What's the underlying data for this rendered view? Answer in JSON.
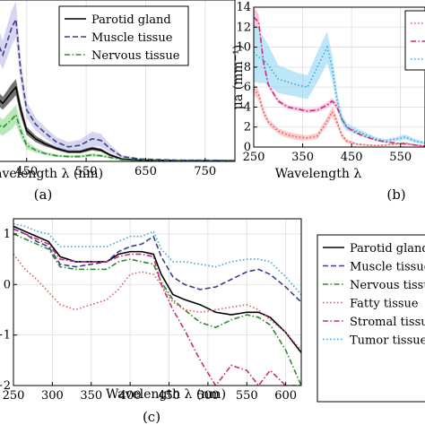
{
  "chart_data": [
    {
      "panel": "a",
      "caption": "(a)",
      "type": "line",
      "xlabel": "Wavelength λ (nm)",
      "xlim": [
        360,
        800
      ],
      "ylim": [
        0,
        10
      ],
      "x_ticks": [
        "450",
        "550",
        "650",
        "750"
      ],
      "x_tick_values": [
        450,
        550,
        650,
        750
      ],
      "legend_position": "top-right",
      "series": [
        {
          "name": "Parotid gland",
          "color": "#000000",
          "dash": "solid",
          "x": [
            360,
            390,
            410,
            425,
            432,
            440,
            450,
            465,
            480,
            500,
            520,
            540,
            560,
            575,
            590,
            610,
            640,
            700,
            800
          ],
          "y": [
            5.2,
            4.3,
            3.6,
            4.3,
            4.6,
            3.2,
            1.9,
            1.4,
            1.1,
            0.8,
            0.6,
            0.6,
            0.8,
            0.7,
            0.4,
            0.15,
            0.08,
            0.05,
            0.04
          ],
          "band": [
            0.6,
            0.5,
            0.4,
            0.5,
            0.5,
            0.4,
            0.25,
            0.2,
            0.15,
            0.1,
            0.1,
            0.1,
            0.12,
            0.1,
            0.08,
            0.04,
            0.02,
            0.01,
            0.01
          ]
        },
        {
          "name": "Muscle tissue",
          "color": "#3a3f8f",
          "dash": "dashed",
          "band_color": "#b8b2e0",
          "x": [
            360,
            390,
            410,
            425,
            432,
            440,
            450,
            465,
            480,
            500,
            520,
            540,
            560,
            575,
            590,
            610,
            640,
            700,
            800
          ],
          "y": [
            9.6,
            8.3,
            6.6,
            8.3,
            8.8,
            5.6,
            3.2,
            2.3,
            1.8,
            1.2,
            0.9,
            1.0,
            1.4,
            1.3,
            0.8,
            0.3,
            0.15,
            0.08,
            0.06
          ],
          "band": [
            1.3,
            1.1,
            0.9,
            1.1,
            1.1,
            0.8,
            0.5,
            0.4,
            0.35,
            0.3,
            0.3,
            0.35,
            0.45,
            0.4,
            0.25,
            0.1,
            0.05,
            0.02,
            0.02
          ]
        },
        {
          "name": "Nervous tissue",
          "color": "#2e8b2e",
          "dash": "dashdot",
          "band_color": "#7ed67e",
          "x": [
            360,
            390,
            410,
            425,
            432,
            440,
            450,
            465,
            480,
            500,
            520,
            540,
            560,
            575,
            590,
            610,
            640,
            700,
            800
          ],
          "y": [
            3.0,
            2.6,
            2.1,
            2.6,
            2.9,
            1.9,
            1.0,
            0.7,
            0.5,
            0.35,
            0.3,
            0.3,
            0.4,
            0.35,
            0.25,
            0.1,
            0.05,
            0.03,
            0.03
          ],
          "band": [
            0.7,
            0.6,
            0.5,
            0.6,
            0.6,
            0.4,
            0.25,
            0.15,
            0.1,
            0.08,
            0.08,
            0.08,
            0.1,
            0.08,
            0.06,
            0.03,
            0.02,
            0.01,
            0.01
          ]
        }
      ]
    },
    {
      "panel": "b",
      "caption": "(b)",
      "type": "line",
      "xlabel": "Wavelength λ",
      "ylabel": "μa (mm⁻¹)",
      "xlim": [
        250,
        600
      ],
      "ylim": [
        0,
        14
      ],
      "x_ticks": [
        "250",
        "350",
        "450",
        "550"
      ],
      "x_tick_values": [
        250,
        350,
        450,
        550
      ],
      "y_ticks": [
        "0",
        "2",
        "4",
        "6",
        "8",
        "10",
        "12",
        "14"
      ],
      "y_tick_values": [
        0,
        2,
        4,
        6,
        8,
        10,
        12,
        14
      ],
      "legend_position": "top-right",
      "series": [
        {
          "name": "",
          "color": "#e05a5a",
          "dash": "dotted",
          "band_color": "#f5a3a3",
          "x": [
            250,
            260,
            270,
            280,
            300,
            320,
            340,
            360,
            380,
            400,
            410,
            415,
            420,
            430,
            440,
            460,
            480,
            500,
            520,
            540,
            560,
            580,
            600
          ],
          "y": [
            5.8,
            5.2,
            3.5,
            2.5,
            1.6,
            1.2,
            1.0,
            0.9,
            1.1,
            2.6,
            3.5,
            3.2,
            2.5,
            1.2,
            0.6,
            0.3,
            0.2,
            0.15,
            0.2,
            0.3,
            0.4,
            0.2,
            0.1
          ],
          "band": [
            0.6,
            0.5,
            0.4,
            0.3,
            0.3,
            0.3,
            0.3,
            0.25,
            0.3,
            0.4,
            0.5,
            0.5,
            0.4,
            0.3,
            0.2,
            0.1,
            0.08,
            0.06,
            0.08,
            0.1,
            0.1,
            0.05,
            0.03
          ]
        },
        {
          "name": "",
          "color": "#cc2a7a",
          "dash": "dashdot",
          "band_color": "#f29ac6",
          "x": [
            250,
            260,
            270,
            280,
            300,
            320,
            340,
            360,
            380,
            400,
            410,
            415,
            420,
            430,
            440,
            460,
            480,
            500,
            520,
            540,
            560,
            580,
            600
          ],
          "y": [
            13.0,
            12.5,
            8.5,
            6.2,
            4.6,
            4.0,
            3.8,
            3.6,
            3.7,
            4.2,
            4.6,
            4.4,
            4.0,
            2.8,
            2.0,
            1.4,
            1.0,
            0.7,
            0.5,
            0.4,
            0.3,
            0.2,
            0.1
          ],
          "band": [
            1.0,
            0.8,
            0.5,
            0.3,
            0.2,
            0.2,
            0.2,
            0.2,
            0.2,
            0.3,
            0.3,
            0.3,
            0.3,
            0.2,
            0.15,
            0.1,
            0.08,
            0.06,
            0.05,
            0.04,
            0.03,
            0.02,
            0.02
          ]
        },
        {
          "name": "",
          "color": "#38a6d8",
          "dash": "dotted",
          "band_color": "#86d3f2",
          "x": [
            250,
            260,
            270,
            280,
            300,
            320,
            340,
            360,
            380,
            400,
            410,
            415,
            420,
            430,
            440,
            460,
            480,
            500,
            520,
            540,
            560,
            580,
            600
          ],
          "y": [
            9.5,
            9.0,
            8.7,
            8.2,
            6.8,
            6.5,
            6.2,
            6.0,
            8.0,
            10.0,
            8.0,
            6.5,
            4.8,
            2.8,
            2.0,
            1.6,
            1.2,
            0.8,
            0.6,
            0.8,
            1.0,
            0.6,
            0.4
          ],
          "band": [
            3.0,
            2.6,
            2.3,
            2.0,
            1.4,
            1.3,
            1.2,
            1.2,
            1.5,
            1.6,
            1.3,
            1.0,
            0.8,
            0.5,
            0.4,
            0.3,
            0.25,
            0.2,
            0.2,
            0.2,
            0.25,
            0.2,
            0.15
          ]
        }
      ]
    },
    {
      "panel": "c",
      "caption": "(c)",
      "type": "line",
      "xlabel": "Wavelength λ (nm)",
      "xlim": [
        250,
        620
      ],
      "ylim": [
        -2,
        1.3
      ],
      "log_y": true,
      "x_ticks": [
        "250",
        "300",
        "350",
        "400",
        "450",
        "500",
        "550",
        "600"
      ],
      "x_tick_values": [
        250,
        300,
        350,
        400,
        450,
        500,
        550,
        600
      ],
      "y_ticks": [
        "1",
        "0",
        "−1",
        "−2"
      ],
      "y_tick_values": [
        1,
        0,
        -1,
        -2
      ],
      "legend_position": "right",
      "series": [
        {
          "name": "Parotid gland",
          "color": "#000000",
          "dash": "solid",
          "x": [
            250,
            265,
            280,
            295,
            310,
            330,
            350,
            370,
            385,
            400,
            415,
            430,
            440,
            455,
            470,
            490,
            510,
            530,
            550,
            565,
            580,
            600,
            620
          ],
          "y": [
            1.15,
            1.05,
            0.95,
            0.85,
            0.55,
            0.45,
            0.45,
            0.45,
            0.6,
            0.65,
            0.65,
            0.6,
            0.2,
            -0.2,
            -0.3,
            -0.4,
            -0.55,
            -0.6,
            -0.55,
            -0.55,
            -0.65,
            -0.95,
            -1.35
          ]
        },
        {
          "name": "Muscle tissue",
          "color": "#3a3f8f",
          "dash": "dashed",
          "x": [
            250,
            265,
            280,
            295,
            310,
            330,
            350,
            370,
            385,
            400,
            415,
            430,
            440,
            455,
            470,
            490,
            510,
            530,
            550,
            565,
            580,
            600,
            620
          ],
          "y": [
            1.1,
            1.0,
            0.85,
            0.75,
            0.4,
            0.35,
            0.4,
            0.45,
            0.65,
            0.75,
            0.8,
            0.95,
            0.55,
            0.15,
            0.0,
            -0.1,
            -0.05,
            0.1,
            0.25,
            0.3,
            0.2,
            -0.05,
            -0.35
          ]
        },
        {
          "name": "Nervous tissue",
          "color": "#2e8b2e",
          "dash": "dashdot",
          "x": [
            250,
            265,
            280,
            295,
            310,
            330,
            350,
            370,
            385,
            400,
            415,
            430,
            440,
            455,
            470,
            490,
            510,
            530,
            550,
            565,
            580,
            600,
            620
          ],
          "y": [
            1.0,
            0.9,
            0.8,
            0.7,
            0.35,
            0.3,
            0.3,
            0.3,
            0.45,
            0.5,
            0.45,
            0.4,
            0.05,
            -0.3,
            -0.5,
            -0.75,
            -0.85,
            -0.7,
            -0.6,
            -0.65,
            -0.8,
            -1.3,
            -2.0
          ]
        },
        {
          "name": "Fatty tissue",
          "color": "#e05a5a",
          "dash": "dotted",
          "x": [
            250,
            265,
            280,
            295,
            310,
            330,
            350,
            370,
            385,
            400,
            415,
            430,
            440,
            455,
            470,
            490,
            510,
            530,
            550,
            565,
            580,
            600,
            620
          ],
          "y": [
            0.6,
            0.3,
            0.1,
            -0.15,
            -0.4,
            -0.5,
            -0.4,
            -0.3,
            -0.1,
            0.2,
            0.25,
            0.2,
            0.0,
            -0.35,
            -0.5,
            -0.55,
            -0.5,
            -0.45,
            -0.4,
            -0.5,
            -0.7,
            -0.95,
            -1.3
          ]
        },
        {
          "name": "Stromal tissue",
          "color": "#cc2a7a",
          "dash": "dashdot",
          "x": [
            250,
            265,
            280,
            295,
            310,
            330,
            350,
            370,
            385,
            400,
            415,
            430,
            440,
            455,
            470,
            490,
            510,
            530,
            550,
            565,
            580,
            600,
            620
          ],
          "y": [
            1.1,
            1.0,
            0.9,
            0.8,
            0.5,
            0.45,
            0.45,
            0.45,
            0.55,
            0.6,
            0.6,
            0.55,
            0.0,
            -0.5,
            -0.9,
            -1.5,
            -2.0,
            -1.6,
            -1.7,
            -2.0,
            -1.7,
            -2.0,
            -2.0
          ]
        },
        {
          "name": "Tumor tissue",
          "color": "#38a6d8",
          "dash": "dotted",
          "x": [
            250,
            265,
            280,
            295,
            310,
            330,
            350,
            370,
            385,
            400,
            415,
            430,
            440,
            455,
            470,
            490,
            510,
            530,
            550,
            565,
            580,
            600,
            620
          ],
          "y": [
            1.2,
            1.15,
            1.05,
            1.0,
            0.75,
            0.75,
            0.75,
            0.75,
            0.85,
            0.95,
            0.95,
            1.05,
            0.7,
            0.45,
            0.45,
            0.4,
            0.35,
            0.45,
            0.5,
            0.5,
            0.45,
            0.15,
            -0.2
          ]
        }
      ]
    }
  ]
}
